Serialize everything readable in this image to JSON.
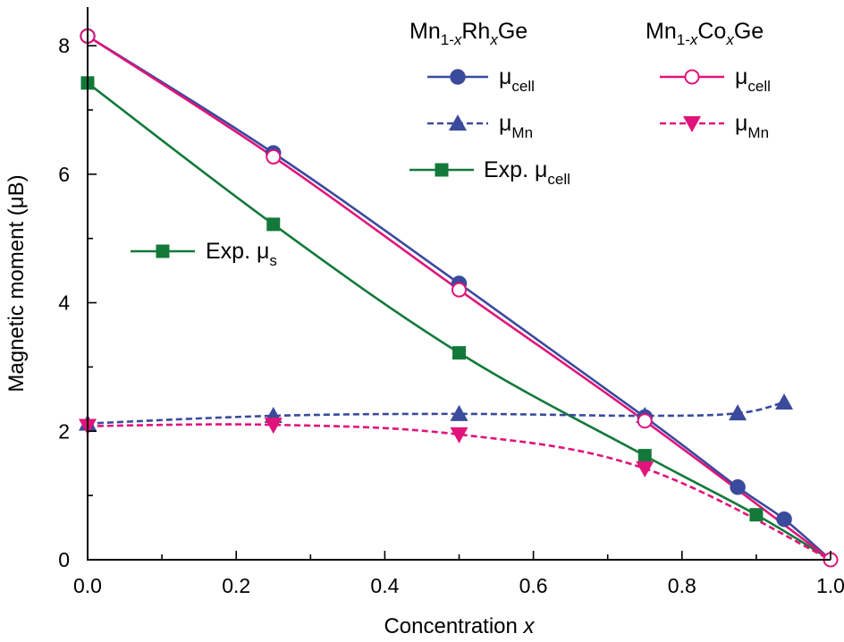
{
  "chart_data": {
    "type": "line",
    "xlabel": "Concentration",
    "xlabel_var": "x",
    "ylabel": "Magnetic moment (μB)",
    "xlim": [
      0,
      1.0
    ],
    "ylim": [
      0,
      8.6
    ],
    "xticks": [
      0.0,
      0.2,
      0.4,
      0.6,
      0.8,
      1.0
    ],
    "xtick_labels": [
      "0.0",
      "0.2",
      "0.4",
      "0.6",
      "0.8",
      "1.0"
    ],
    "yticks": [
      0,
      2,
      4,
      6,
      8
    ],
    "ytick_labels": [
      "0",
      "2",
      "4",
      "6",
      "8"
    ],
    "legend_groups": [
      {
        "base": "Mn",
        "sub1": "1-",
        "var": "x",
        "elem": "Rh",
        "sub2": "x",
        "tail": "Ge"
      },
      {
        "base": "Mn",
        "sub1": "1-",
        "var": "x",
        "elem": "Co",
        "sub2": "x",
        "tail": "Ge"
      }
    ],
    "series": [
      {
        "name": "Rh μcell",
        "label": "μ",
        "label_sub": "cell",
        "color": "#3a4a9c",
        "marker": "circle-filled",
        "dash": "solid",
        "x": [
          0.0,
          0.25,
          0.5,
          0.75,
          0.875,
          0.9375,
          1.0
        ],
        "y": [
          8.15,
          6.33,
          4.3,
          2.22,
          1.13,
          0.63,
          0.0
        ]
      },
      {
        "name": "Rh μMn",
        "label": "μ",
        "label_sub": "Mn",
        "color": "#3a4a9c",
        "marker": "triangle-up",
        "dash": "dashed",
        "x": [
          0.0,
          0.25,
          0.5,
          0.75,
          0.875,
          0.9375
        ],
        "y": [
          2.12,
          2.24,
          2.27,
          2.24,
          2.28,
          2.45
        ]
      },
      {
        "name": "Co μcell",
        "label": "μ",
        "label_sub": "cell",
        "color": "#e0147a",
        "marker": "circle-open",
        "dash": "solid",
        "x": [
          0.0,
          0.25,
          0.5,
          0.75,
          1.0
        ],
        "y": [
          8.15,
          6.27,
          4.2,
          2.16,
          0.0
        ]
      },
      {
        "name": "Co μMn",
        "label": "μ",
        "label_sub": "Mn",
        "color": "#e0147a",
        "marker": "triangle-down",
        "dash": "dashed",
        "x": [
          0.0,
          0.25,
          0.5,
          0.75,
          1.0
        ],
        "y": [
          2.08,
          2.1,
          1.95,
          1.42,
          0.0
        ]
      },
      {
        "name": "Exp. μcell",
        "label": "Exp. μ",
        "label_sub": "cell",
        "color": "#13793a",
        "marker": "square",
        "dash": "solid",
        "x": [
          0.0,
          0.25,
          0.5,
          0.75,
          0.9,
          1.0
        ],
        "y": [
          7.42,
          5.22,
          3.22,
          1.62,
          0.7,
          0.0
        ]
      },
      {
        "name": "Exp. μs",
        "label": "Exp. μ",
        "label_sub": "s",
        "color": "#13793a",
        "marker": "square",
        "dash": "solid",
        "x": [],
        "y": []
      }
    ]
  }
}
